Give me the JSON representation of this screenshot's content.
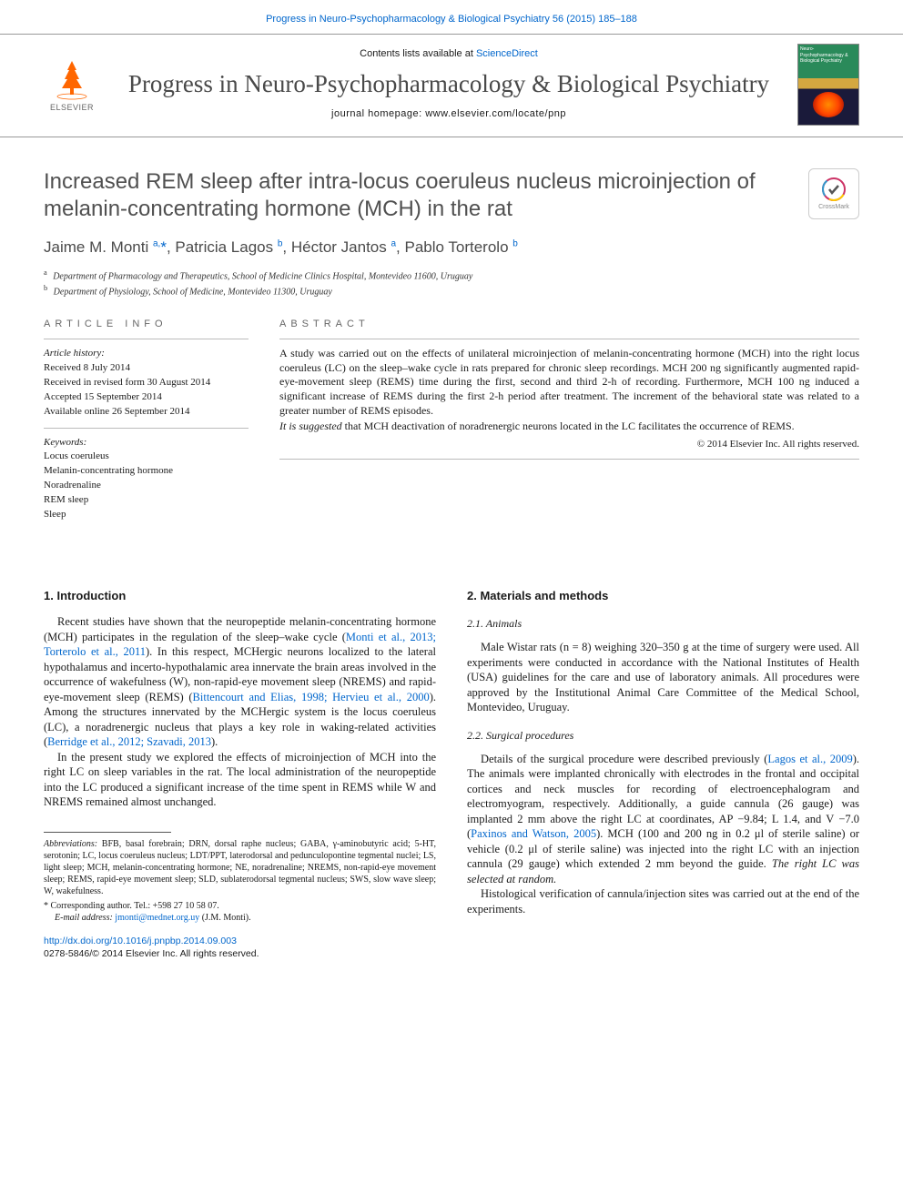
{
  "journal_ref_link": "Progress in Neuro-Psychopharmacology & Biological Psychiatry 56 (2015) 185–188",
  "masthead": {
    "contents_prefix": "Contents lists available at ",
    "contents_link": "ScienceDirect",
    "journal_name": "Progress in Neuro-Psychopharmacology & Biological Psychiatry",
    "homepage_prefix": "journal homepage: ",
    "homepage_url": "www.elsevier.com/locate/pnp",
    "publisher": "ELSEVIER",
    "cover_text_top": "Neuro-Psychopharmacology\n& Biological Psychiatry"
  },
  "crossmark_label": "CrossMark",
  "title": "Increased REM sleep after intra-locus coeruleus nucleus microinjection of melanin-concentrating hormone (MCH) in the rat",
  "authors_html": "Jaime M. Monti <sup>a,</sup><span class='star'>*</span>, Patricia Lagos <sup>b</sup>, Héctor Jantos <sup>a</sup>, Pablo Torterolo <sup>b</sup>",
  "affiliations": [
    {
      "sup": "a",
      "text": "Department of Pharmacology and Therapeutics, School of Medicine Clinics Hospital, Montevideo 11600, Uruguay"
    },
    {
      "sup": "b",
      "text": "Department of Physiology, School of Medicine, Montevideo 11300, Uruguay"
    }
  ],
  "article_info": {
    "heading": "ARTICLE INFO",
    "history_label": "Article history:",
    "history": [
      "Received 8 July 2014",
      "Received in revised form 30 August 2014",
      "Accepted 15 September 2014",
      "Available online 26 September 2014"
    ],
    "keywords_label": "Keywords:",
    "keywords": [
      "Locus coeruleus",
      "Melanin-concentrating hormone",
      "Noradrenaline",
      "REM sleep",
      "Sleep"
    ]
  },
  "abstract": {
    "heading": "ABSTRACT",
    "paragraphs": [
      "A study was carried out on the effects of unilateral microinjection of melanin-concentrating hormone (MCH) into the right locus coeruleus (LC) on the sleep–wake cycle in rats prepared for chronic sleep recordings. MCH 200 ng significantly augmented rapid-eye-movement sleep (REMS) time during the first, second and third 2-h of recording. Furthermore, MCH 100 ng induced a significant increase of REMS during the first 2-h period after treatment. The increment of the behavioral state was related to a greater number of REMS episodes.",
      "It is suggested that MCH deactivation of noradrenergic neurons located in the LC facilitates the occurrence of REMS."
    ],
    "copyright": "© 2014 Elsevier Inc. All rights reserved."
  },
  "left_col": {
    "intro_heading": "1. Introduction",
    "p1_a": "Recent studies have shown that the neuropeptide melanin-concentrating hormone (MCH) participates in the regulation of the sleep–wake cycle (",
    "p1_ref1": "Monti et al., 2013; Torterolo et al., 2011",
    "p1_b": "). In this respect, MCHergic neurons localized to the lateral hypothalamus and incerto-hypothalamic area innervate the brain areas involved in the occurrence of wakefulness (W), non-rapid-eye movement sleep (NREMS) and rapid-eye-movement sleep (REMS) (",
    "p1_ref2": "Bittencourt and Elias, 1998; Hervieu et al., 2000",
    "p1_c": "). Among the structures innervated by the MCHergic system is the locus coeruleus (LC), a noradrenergic nucleus that plays a key role in waking-related activities (",
    "p1_ref3": "Berridge et al., 2012; Szavadi, 2013",
    "p1_d": ").",
    "p2": "In the present study we explored the effects of microinjection of MCH into the right LC on sleep variables in the rat. The local administration of the neuropeptide into the LC produced a significant increase of the time spent in REMS while W and NREMS remained almost unchanged.",
    "abbrev_label": "Abbreviations:",
    "abbrev_text": " BFB, basal forebrain; DRN, dorsal raphe nucleus; GABA, γ-aminobutyric acid; 5-HT, serotonin; LC, locus coeruleus nucleus; LDT/PPT, laterodorsal and pedunculopontine tegmental nuclei; LS, light sleep; MCH, melanin-concentrating hormone; NE, noradrenaline; NREMS, non-rapid-eye movement sleep; REMS, rapid-eye movement sleep; SLD, sublaterodorsal tegmental nucleus; SWS, slow wave sleep; W, wakefulness.",
    "corresp_label": "* Corresponding author. Tel.: +598 27 10 58 07.",
    "email_label": "E-mail address: ",
    "email": "jmonti@mednet.org.uy",
    "email_suffix": " (J.M. Monti)."
  },
  "right_col": {
    "methods_heading": "2. Materials and methods",
    "s21_heading": "2.1. Animals",
    "s21_p": "Male Wistar rats (n = 8) weighing 320–350 g at the time of surgery were used. All experiments were conducted in accordance with the National Institutes of Health (USA) guidelines for the care and use of laboratory animals. All procedures were approved by the Institutional Animal Care Committee of the Medical School, Montevideo, Uruguay.",
    "s22_heading": "2.2. Surgical procedures",
    "s22_p1_a": "Details of the surgical procedure were described previously (",
    "s22_ref1": "Lagos et al., 2009",
    "s22_p1_b": "). The animals were implanted chronically with electrodes in the frontal and occipital cortices and neck muscles for recording of electroencephalogram and electromyogram, respectively. Additionally, a guide cannula (26 gauge) was implanted 2 mm above the right LC at coordinates, AP −9.84; L 1.4, and V −7.0 (",
    "s22_ref2": "Paxinos and Watson, 2005",
    "s22_p1_c": "). MCH (100 and 200 ng in 0.2 μl of sterile saline) or vehicle (0.2 μl of sterile saline) was injected into the right LC with an injection cannula (29 gauge) which extended 2 mm beyond the guide. ",
    "s22_p1_ital": "The right LC was selected at random.",
    "s22_p2": "Histological verification of cannula/injection sites was carried out at the end of the experiments."
  },
  "footer": {
    "doi": "http://dx.doi.org/10.1016/j.pnpbp.2014.09.003",
    "issn_line": "0278-5846/© 2014 Elsevier Inc. All rights reserved."
  },
  "colors": {
    "link": "#0066cc",
    "text": "#1a1a1a",
    "title_gray": "#505050",
    "muted": "#666666",
    "border": "#bbbbbb",
    "elsevier_orange": "#ff6600"
  }
}
